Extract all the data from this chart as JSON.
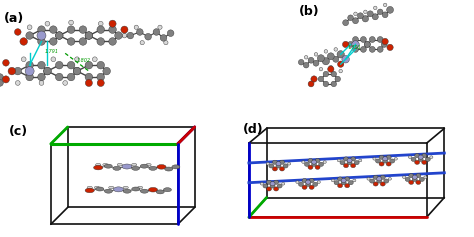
{
  "figure_width": 4.74,
  "figure_height": 2.37,
  "dpi": 100,
  "background_color": "#ffffff",
  "panels": [
    "(a)",
    "(b)",
    "(c)",
    "(d)"
  ],
  "label_fontsize": 9,
  "label_color": "#000000",
  "mol_colors": {
    "carbon": "#808080",
    "carbon_dark": "#606060",
    "oxygen": "#cc2200",
    "nitrogen": "#9999cc",
    "hydrogen": "#d8d8d8",
    "hbond_cyan": "#00cccc",
    "hbond_green": "#009900"
  },
  "cell_colors": {
    "a": "#cc0000",
    "b": "#00aa00",
    "c": "#0000cc",
    "black": "#111111"
  }
}
